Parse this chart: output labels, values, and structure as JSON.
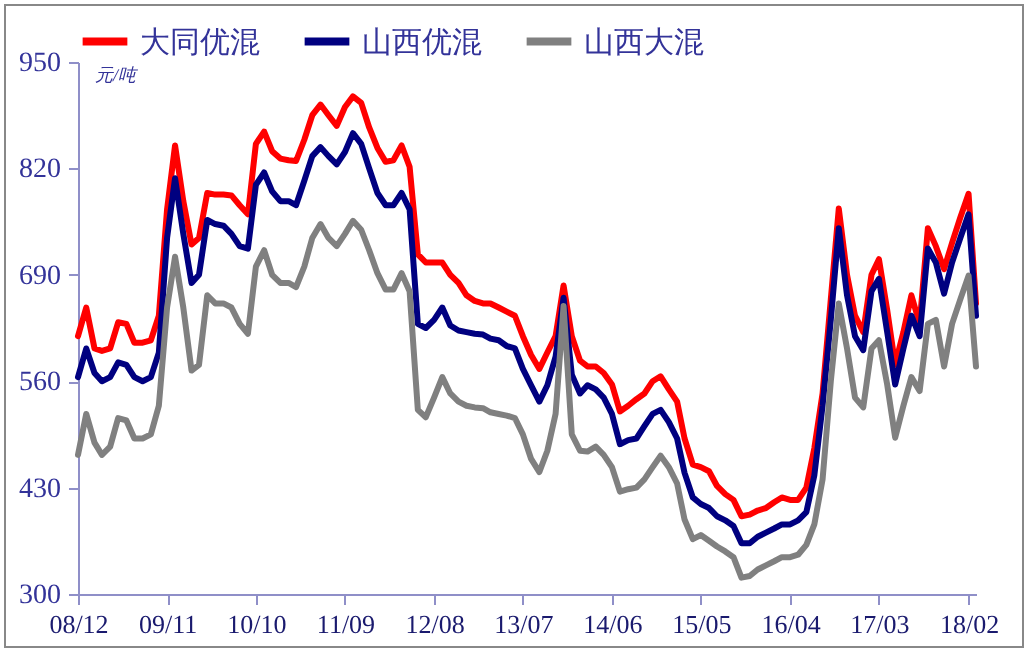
{
  "chart_data": {
    "type": "line",
    "ylabel": "元/吨",
    "legend": "top",
    "x": [
      "2008-12",
      "2009-01",
      "2009-02",
      "2009-03",
      "2009-04",
      "2009-05",
      "2009-06",
      "2009-07",
      "2009-08",
      "2009-09",
      "2009-10",
      "2009-11",
      "2009-12",
      "2010-01",
      "2010-02",
      "2010-03",
      "2010-04",
      "2010-05",
      "2010-06",
      "2010-07",
      "2010-08",
      "2010-09",
      "2010-10",
      "2010-11",
      "2010-12",
      "2011-01",
      "2011-02",
      "2011-03",
      "2011-04",
      "2011-05",
      "2011-06",
      "2011-07",
      "2011-08",
      "2011-09",
      "2011-10",
      "2011-11",
      "2011-12",
      "2012-01",
      "2012-02",
      "2012-03",
      "2012-04",
      "2012-05",
      "2012-06",
      "2012-07",
      "2012-08",
      "2012-09",
      "2012-10",
      "2012-11",
      "2012-12",
      "2013-01",
      "2013-02",
      "2013-03",
      "2013-04",
      "2013-05",
      "2013-06",
      "2013-07",
      "2013-08",
      "2013-09",
      "2013-10",
      "2013-11",
      "2013-12",
      "2014-01",
      "2014-02",
      "2014-03",
      "2014-04",
      "2014-05",
      "2014-06",
      "2014-07",
      "2014-08",
      "2014-09",
      "2014-10",
      "2014-11",
      "2014-12",
      "2015-01",
      "2015-02",
      "2015-03",
      "2015-04",
      "2015-05",
      "2015-06",
      "2015-07",
      "2015-08",
      "2015-09",
      "2015-10",
      "2015-11",
      "2015-12",
      "2016-01",
      "2016-02",
      "2016-03",
      "2016-04",
      "2016-05",
      "2016-06",
      "2016-07",
      "2016-08",
      "2016-09",
      "2016-10",
      "2016-11",
      "2016-12",
      "2017-01",
      "2017-02",
      "2017-03",
      "2017-04",
      "2017-05",
      "2017-06",
      "2017-07",
      "2017-08",
      "2017-09",
      "2017-10",
      "2017-11",
      "2017-12",
      "2018-01",
      "2018-02",
      "2018-03"
    ],
    "series": [
      {
        "name": "大同优混",
        "color": "#ff0000",
        "values": [
          615,
          650,
          600,
          597,
          600,
          632,
          630,
          607,
          607,
          610,
          640,
          770,
          848,
          780,
          727,
          735,
          790,
          788,
          788,
          787,
          775,
          764,
          850,
          865,
          841,
          832,
          830,
          829,
          855,
          885,
          898,
          885,
          872,
          895,
          908,
          900,
          870,
          845,
          828,
          830,
          848,
          822,
          715,
          705,
          705,
          705,
          690,
          680,
          665,
          658,
          655,
          655,
          650,
          645,
          640,
          615,
          592,
          575,
          595,
          615,
          677,
          615,
          585,
          578,
          578,
          570,
          556,
          523,
          530,
          538,
          545,
          560,
          566,
          550,
          535,
          490,
          458,
          455,
          450,
          432,
          422,
          415,
          395,
          397,
          402,
          405,
          412,
          418,
          415,
          415,
          430,
          478,
          545,
          660,
          771,
          690,
          640,
          620,
          690,
          709,
          647,
          580,
          620,
          665,
          630,
          747,
          725,
          697,
          729,
          760,
          789,
          655
        ]
      },
      {
        "name": "山西优混",
        "color": "#000080",
        "values": [
          565,
          600,
          570,
          560,
          565,
          583,
          580,
          565,
          560,
          565,
          595,
          735,
          808,
          740,
          680,
          690,
          757,
          752,
          750,
          740,
          725,
          722,
          800,
          815,
          792,
          780,
          780,
          775,
          805,
          835,
          846,
          835,
          825,
          840,
          863,
          850,
          820,
          790,
          775,
          775,
          790,
          770,
          630,
          625,
          635,
          650,
          628,
          622,
          620,
          618,
          617,
          612,
          610,
          603,
          600,
          575,
          555,
          535,
          555,
          590,
          662,
          568,
          545,
          555,
          550,
          540,
          520,
          483,
          488,
          490,
          505,
          520,
          525,
          510,
          490,
          448,
          418,
          410,
          405,
          395,
          390,
          383,
          362,
          362,
          370,
          375,
          380,
          385,
          385,
          390,
          400,
          445,
          530,
          635,
          747,
          665,
          615,
          598,
          670,
          685,
          620,
          556,
          600,
          640,
          615,
          722,
          705,
          667,
          705,
          735,
          764,
          640
        ]
      },
      {
        "name": "山西大混",
        "color": "#808080",
        "values": [
          470,
          520,
          485,
          470,
          480,
          515,
          512,
          490,
          490,
          495,
          530,
          650,
          712,
          650,
          573,
          580,
          665,
          655,
          655,
          650,
          630,
          618,
          700,
          720,
          690,
          680,
          680,
          675,
          700,
          735,
          752,
          735,
          725,
          740,
          756,
          745,
          720,
          692,
          672,
          672,
          692,
          670,
          525,
          516,
          540,
          565,
          545,
          535,
          530,
          528,
          527,
          522,
          520,
          518,
          515,
          495,
          465,
          449,
          475,
          520,
          652,
          495,
          475,
          474,
          480,
          470,
          455,
          425,
          428,
          430,
          440,
          455,
          469,
          455,
          435,
          391,
          367,
          372,
          365,
          358,
          352,
          345,
          320,
          322,
          330,
          335,
          340,
          345,
          345,
          348,
          360,
          385,
          440,
          560,
          655,
          600,
          540,
          528,
          600,
          610,
          556,
          491,
          530,
          565,
          548,
          630,
          635,
          578,
          630,
          660,
          689,
          578
        ]
      }
    ],
    "xlim": [
      "2008-12",
      "2018-03"
    ],
    "xticks": [
      {
        "value": "2008-12",
        "label": "08/12"
      },
      {
        "value": "2009-11",
        "label": "09/11"
      },
      {
        "value": "2010-10",
        "label": "10/10"
      },
      {
        "value": "2011-09",
        "label": "11/09"
      },
      {
        "value": "2012-08",
        "label": "12/08"
      },
      {
        "value": "2013-07",
        "label": "13/07"
      },
      {
        "value": "2014-06",
        "label": "14/06"
      },
      {
        "value": "2015-05",
        "label": "15/05"
      },
      {
        "value": "2016-04",
        "label": "16/04"
      },
      {
        "value": "2017-03",
        "label": "17/03"
      },
      {
        "value": "2018-02",
        "label": "18/02"
      }
    ],
    "ylim": [
      300,
      950
    ],
    "yticks": [
      300,
      430,
      560,
      690,
      820,
      950
    ],
    "grid": false,
    "marker": "none",
    "line_style": "solid"
  }
}
